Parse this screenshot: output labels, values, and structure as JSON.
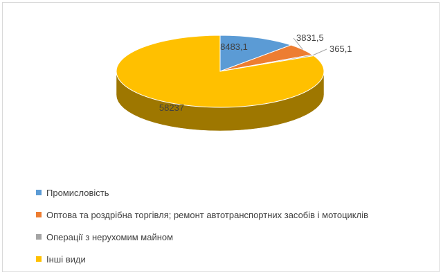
{
  "chart_data": {
    "type": "pie",
    "title": "",
    "style": "3d",
    "categories": [
      "Промисловість",
      "Оптова та роздрібна торгівля; ремонт автотранспортних засобів і мотоциклів",
      "Операції з нерухомим майном",
      "Інші види"
    ],
    "values": [
      8483.1,
      3831.5,
      365.1,
      58237
    ],
    "value_labels": [
      "8483,1",
      "3831,5",
      "365,1",
      "58237"
    ],
    "colors": [
      "#5b9bd5",
      "#ed7d31",
      "#a5a5a5",
      "#ffc000"
    ],
    "legend_position": "bottom"
  }
}
